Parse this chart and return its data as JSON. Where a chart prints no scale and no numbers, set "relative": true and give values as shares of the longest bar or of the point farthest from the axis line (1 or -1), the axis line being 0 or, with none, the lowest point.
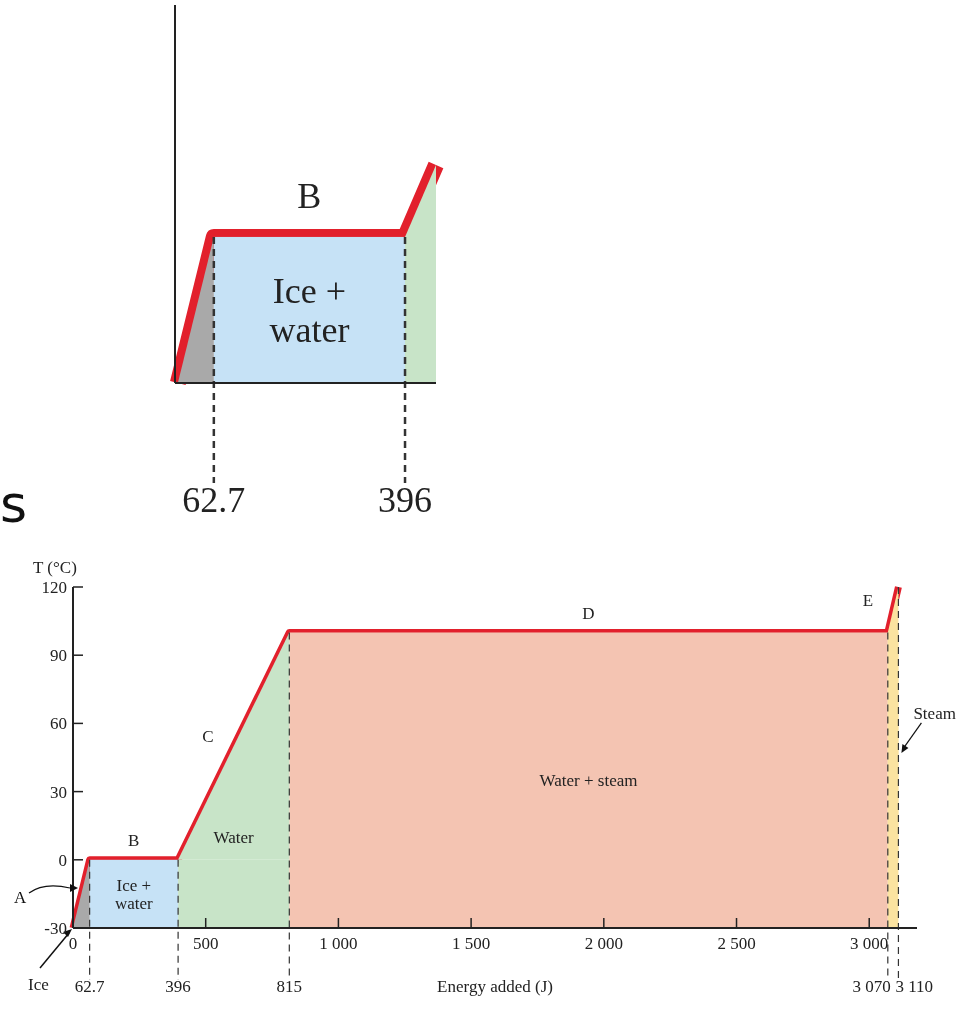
{
  "chart_data": [
    {
      "type": "line",
      "relative": true,
      "xlim": [
        -5,
        450
      ],
      "xticks": [
        {
          "value": 62.7,
          "label": "62.7"
        },
        {
          "value": 396,
          "label": "396"
        }
      ],
      "series": [
        {
          "type": "area",
          "color": "#a9a9a9",
          "x": [
            0,
            62.7
          ],
          "values": [
            0,
            0.67
          ]
        },
        {
          "type": "area",
          "color": "#c8e4c8",
          "x": [
            396,
            450
          ],
          "values": [
            0.67,
            1
          ]
        },
        {
          "color": "#e2202c",
          "x": [
            0,
            62.7,
            396,
            450
          ],
          "values": [
            0,
            0.67,
            0.67,
            1
          ]
        }
      ],
      "bands": [
        {
          "axis": "x",
          "from": 62.7,
          "to": 396,
          "color": "#c6e2f6",
          "label": "Ice + water"
        }
      ],
      "ref_lines": [
        {
          "axis": "x",
          "value": 62.7,
          "line_style": "dashed"
        },
        {
          "axis": "x",
          "value": 396,
          "line_style": "dashed"
        }
      ],
      "annotations": [
        {
          "text": "B",
          "x": 229,
          "y": 0.67
        },
        "s"
      ]
    },
    {
      "type": "line",
      "xlabel": "Energy added (J)",
      "ylabel": "T (°C)",
      "xlim": [
        0,
        3180
      ],
      "ylim": [
        -30,
        120
      ],
      "xticks": [
        0,
        500,
        {
          "value": 1000,
          "label": "1 000"
        },
        {
          "value": 1500,
          "label": "1 500"
        },
        {
          "value": 2000,
          "label": "2 000"
        },
        {
          "value": 2500,
          "label": "2 500"
        },
        {
          "value": 3000,
          "label": "3 000"
        }
      ],
      "yticks": [
        -30,
        0,
        30,
        60,
        90,
        120
      ],
      "series": [
        {
          "type": "area",
          "name": "Ice",
          "color": "#a9a9a9",
          "x": [
            0,
            62.7
          ],
          "values": [
            -30,
            0
          ]
        },
        {
          "type": "area",
          "name": "Water",
          "color": "#c8e4c8",
          "x": [
            396,
            815
          ],
          "values": [
            0,
            100
          ]
        },
        {
          "type": "area",
          "name": "Steam",
          "color": "#fbe3a0",
          "x": [
            3070,
            3110
          ],
          "values": [
            100,
            120
          ]
        },
        {
          "color": "#e2202c",
          "x": [
            0,
            62.7,
            396,
            815,
            3070,
            3110
          ],
          "values": [
            -30,
            0,
            0,
            100,
            100,
            120
          ]
        }
      ],
      "bands": [
        {
          "axis": "x",
          "from": 62.7,
          "to": 396,
          "color": "#c6e2f6",
          "label": "Ice + water"
        },
        {
          "axis": "x",
          "from": 396,
          "to": 815,
          "color": "#c8e4c8",
          "label": null
        },
        {
          "axis": "x",
          "from": 815,
          "to": 3070,
          "color": "#f4c4b2",
          "label": "Water + steam"
        },
        {
          "axis": "x",
          "from": 3070,
          "to": 3110,
          "color": "#fbe3a0",
          "label": null
        }
      ],
      "ref_lines": [
        {
          "axis": "x",
          "value": 62.7,
          "label": "62.7",
          "line_style": "dashed"
        },
        {
          "axis": "x",
          "value": 396,
          "label": "396",
          "line_style": "dashed"
        },
        {
          "axis": "x",
          "value": 815,
          "label": "815",
          "line_style": "dashed"
        },
        {
          "axis": "x",
          "value": 3070,
          "label": "3 070",
          "line_style": "dashed"
        },
        {
          "axis": "x",
          "value": 3110,
          "label": "3 110",
          "line_style": "dashed"
        }
      ],
      "annotations": [
        "A",
        {
          "text": "B",
          "x": 229,
          "y": 0
        },
        {
          "text": "C",
          "x": 605,
          "y": 50
        },
        {
          "text": "D",
          "x": 1942,
          "y": 100
        },
        {
          "text": "E",
          "x": 3090,
          "y": 110
        }
      ]
    }
  ]
}
